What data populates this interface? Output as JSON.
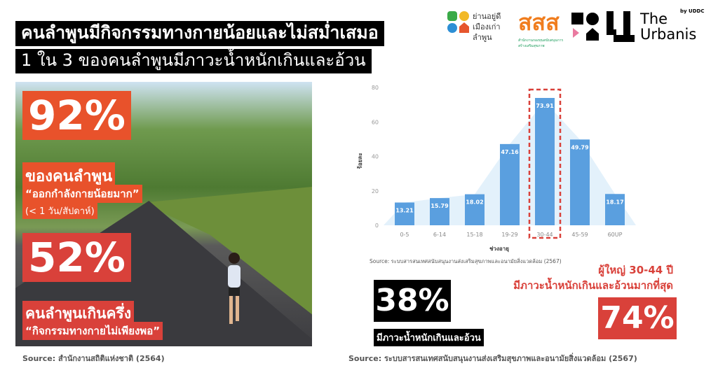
{
  "header": {
    "title": "คนลำพูนมีกิจกรรมทางกายน้อยและไม่สม่ำเสมอ",
    "subtitle": "1 ใน 3 ของคนลำพูนมีภาวะน้ำหนักเกินและอ้วน"
  },
  "logos": {
    "yannayudee": "ย่านอยู่ดี เมืองเก่าลำพูน",
    "thaihealth": "สสส",
    "thaihealth_sub": "สำนักงานกองทุนสนับสนุนการสร้างเสริมสุขภาพ",
    "urbanis": "The Urbanis",
    "urbanis_by": "by UDDC"
  },
  "left": {
    "stat1": {
      "value": "92%",
      "label": "ของคนลำพูน",
      "quote": "“ออกกำลังกายน้อยมาก”",
      "note": "(< 1 วัน/สัปดาห์)"
    },
    "stat2": {
      "value": "52%",
      "label": "คนลำพูนเกินครึ่ง",
      "quote": "“กิจกรรมทางกายไม่เพียงพอ”"
    },
    "source": "Source: สำนักงานสถิติแห่งชาติ (2564)"
  },
  "right": {
    "stat1": {
      "value": "38%",
      "label": "มีภาวะน้ำหนักเกินและอ้วน"
    },
    "stat2": {
      "line1": "ผู้ใหญ่ 30-44 ปี",
      "line2": "มีภาวะน้ำหนักเกินและอ้วนมากที่สุด",
      "value": "74%"
    },
    "source": "Source: ระบบสารสนเทศสนับสนุนงานส่งเสริมสุขภาพและอนามัยสิ่งแวดล้อม (2567)"
  },
  "chart_data": {
    "type": "bar",
    "categories": [
      "0-5",
      "6-14",
      "15-18",
      "19-29",
      "30-44",
      "45-59",
      "60UP"
    ],
    "values": [
      13.21,
      15.79,
      18.02,
      47.16,
      73.91,
      49.79,
      18.17
    ],
    "data_labels": [
      "13.21",
      "15.79",
      "18.02",
      "47.16",
      "73.91",
      "49.79",
      "18.17"
    ],
    "xlabel": "ช่วงอายุ",
    "ylabel": "ร้อยละ",
    "ylim": [
      0,
      80
    ],
    "yticks": [
      "0",
      "20",
      "40",
      "60",
      "80"
    ],
    "highlight": "30-44",
    "source": "Source: ระบบสารสนเทศสนับสนุนงานส่งเสริมสุขภาพและอนามัยสิ่งแวดล้อม (2567)",
    "grid": false,
    "colors": {
      "bar": "#5a9fdf",
      "area": "#e3f1fb",
      "highlight": "#d9413a"
    }
  },
  "colors": {
    "orange": "#e8522b",
    "red": "#d9413a",
    "black": "#000000"
  }
}
